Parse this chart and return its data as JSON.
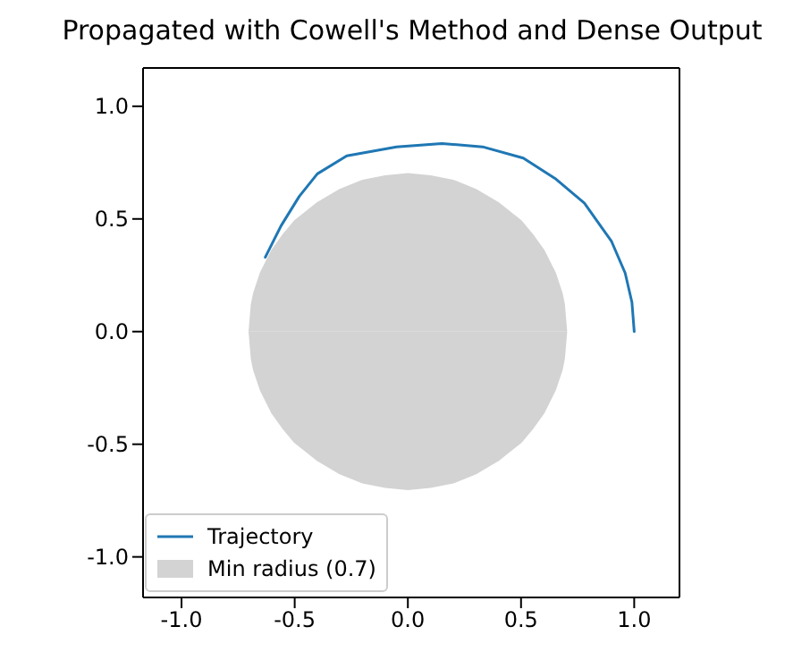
{
  "chart_data": {
    "type": "line",
    "title": "Propagated with Cowell's Method and Dense Output",
    "xlim": [
      -1.17,
      1.2
    ],
    "ylim": [
      -1.18,
      1.17
    ],
    "xticks": [
      {
        "value": -1,
        "label": "-1.0"
      },
      {
        "value": -0.5,
        "label": "-0.5"
      },
      {
        "value": 0,
        "label": "0.0"
      },
      {
        "value": 0.5,
        "label": "0.5"
      },
      {
        "value": 1,
        "label": "1.0"
      }
    ],
    "yticks": [
      {
        "value": -1,
        "label": "-1.0"
      },
      {
        "value": -0.5,
        "label": "-0.5"
      },
      {
        "value": 0,
        "label": "0.0"
      },
      {
        "value": 0.5,
        "label": "0.5"
      },
      {
        "value": 1,
        "label": "1.0"
      }
    ],
    "grid": false,
    "legend": "bottom left",
    "marker": "none",
    "line_style": "solid",
    "series": [
      {
        "name": "Min radius (0.7)",
        "type": "area",
        "color": "#d3d3d3",
        "x": [
          -0.7,
          -0.69,
          -0.68,
          -0.65,
          -0.6,
          -0.55,
          -0.5,
          -0.4,
          -0.3,
          -0.2,
          -0.1,
          0,
          0.1,
          0.2,
          0.3,
          0.4,
          0.5,
          0.55,
          0.6,
          0.65,
          0.68,
          0.69,
          0.7
        ],
        "values": [
          0,
          0.12,
          0.17,
          0.26,
          0.36,
          0.43,
          0.49,
          0.57,
          0.63,
          0.67,
          0.69,
          0.7,
          0.69,
          0.67,
          0.63,
          0.57,
          0.49,
          0.43,
          0.36,
          0.26,
          0.17,
          0.12,
          0
        ]
      },
      {
        "type": "area",
        "color": "#d3d3d3",
        "x": [
          -0.7,
          -0.69,
          -0.68,
          -0.65,
          -0.6,
          -0.55,
          -0.5,
          -0.4,
          -0.3,
          -0.2,
          -0.1,
          0,
          0.1,
          0.2,
          0.3,
          0.4,
          0.5,
          0.55,
          0.6,
          0.65,
          0.68,
          0.69,
          0.7
        ],
        "values": [
          0,
          -0.12,
          -0.17,
          -0.26,
          -0.36,
          -0.43,
          -0.49,
          -0.57,
          -0.63,
          -0.67,
          -0.69,
          -0.7,
          -0.69,
          -0.67,
          -0.63,
          -0.57,
          -0.49,
          -0.43,
          -0.36,
          -0.26,
          -0.17,
          -0.12,
          0
        ]
      },
      {
        "name": "Trajectory",
        "type": "line",
        "color": "#1f77b4",
        "x": [
          1.0,
          0.99,
          0.96,
          0.9,
          0.78,
          0.65,
          0.51,
          0.33,
          0.15,
          -0.05,
          -0.27,
          -0.4,
          -0.48,
          -0.56,
          -0.63
        ],
        "values": [
          0,
          0.13,
          0.26,
          0.4,
          0.57,
          0.68,
          0.77,
          0.82,
          0.835,
          0.82,
          0.78,
          0.7,
          0.6,
          0.47,
          0.33
        ]
      }
    ]
  }
}
